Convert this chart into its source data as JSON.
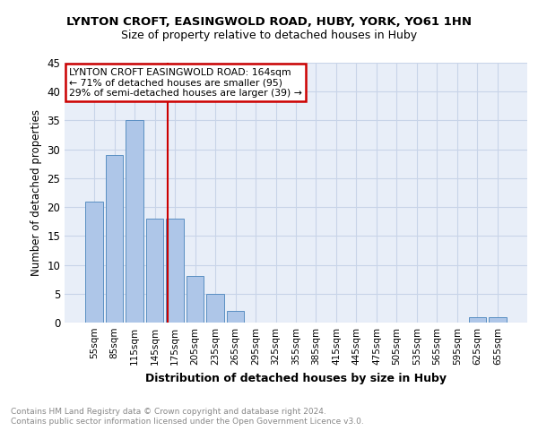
{
  "title1": "LYNTON CROFT, EASINGWOLD ROAD, HUBY, YORK, YO61 1HN",
  "title2": "Size of property relative to detached houses in Huby",
  "xlabel": "Distribution of detached houses by size in Huby",
  "ylabel": "Number of detached properties",
  "categories": [
    "55sqm",
    "85sqm",
    "115sqm",
    "145sqm",
    "175sqm",
    "205sqm",
    "235sqm",
    "265sqm",
    "295sqm",
    "325sqm",
    "355sqm",
    "385sqm",
    "415sqm",
    "445sqm",
    "475sqm",
    "505sqm",
    "535sqm",
    "565sqm",
    "595sqm",
    "625sqm",
    "655sqm"
  ],
  "values": [
    21,
    29,
    35,
    18,
    18,
    8,
    5,
    2,
    0,
    0,
    0,
    0,
    0,
    0,
    0,
    0,
    0,
    0,
    0,
    1,
    1
  ],
  "bar_color": "#aec6e8",
  "bar_edge_color": "#5a8fc2",
  "vline_color": "#cc0000",
  "annotation_text": "LYNTON CROFT EASINGWOLD ROAD: 164sqm\n← 71% of detached houses are smaller (95)\n29% of semi-detached houses are larger (39) →",
  "annotation_box_color": "#ffffff",
  "annotation_box_edge_color": "#cc0000",
  "grid_color": "#c8d4e8",
  "bg_color": "#e8eef8",
  "footer_text": "Contains HM Land Registry data © Crown copyright and database right 2024.\nContains public sector information licensed under the Open Government Licence v3.0.",
  "ylim": [
    0,
    45
  ],
  "yticks": [
    0,
    5,
    10,
    15,
    20,
    25,
    30,
    35,
    40,
    45
  ]
}
